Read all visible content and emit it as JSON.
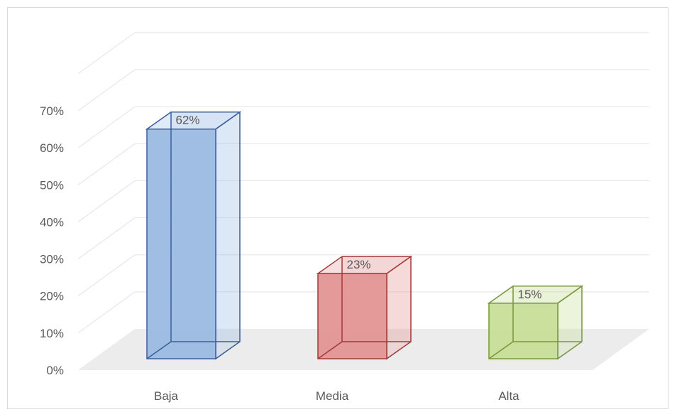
{
  "chart_data": {
    "type": "bar",
    "style": "3d-column",
    "categories": [
      "Baja",
      "Media",
      "Alta"
    ],
    "values": [
      62,
      23,
      15
    ],
    "value_suffix": "%",
    "data_labels": [
      "62%",
      "23%",
      "15%"
    ],
    "y_ticks": [
      "0%",
      "10%",
      "20%",
      "30%",
      "40%",
      "50%",
      "60%",
      "70%"
    ],
    "ylim": [
      0,
      80
    ],
    "grid": true,
    "legend": "none",
    "colors": {
      "fill": [
        "#9bbbe3",
        "#e39594",
        "#c9de98"
      ],
      "stroke": [
        "#3a5f9b",
        "#a23a38",
        "#77963a"
      ]
    }
  }
}
